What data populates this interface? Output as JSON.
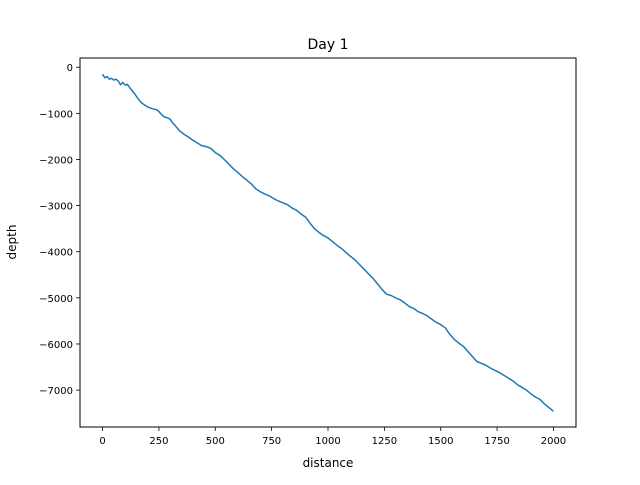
{
  "chart_data": {
    "type": "line",
    "title": "Day 1",
    "xlabel": "distance",
    "ylabel": "depth",
    "xlim": [
      -100,
      2100
    ],
    "ylim": [
      -7800,
      200
    ],
    "xticks": [
      0,
      250,
      500,
      750,
      1000,
      1250,
      1500,
      1750,
      2000
    ],
    "xtick_labels": [
      "0",
      "250",
      "500",
      "750",
      "1000",
      "1250",
      "1500",
      "1750",
      "2000"
    ],
    "yticks": [
      0,
      -1000,
      -2000,
      -3000,
      -4000,
      -5000,
      -6000,
      -7000
    ],
    "ytick_labels": [
      "0",
      "−1000",
      "−2000",
      "−3000",
      "−4000",
      "−5000",
      "−6000",
      "−7000"
    ],
    "grid": false,
    "legend": "none",
    "series": [
      {
        "color": "#1f77b4",
        "x": [
          0,
          10,
          20,
          30,
          40,
          50,
          60,
          70,
          80,
          90,
          100,
          110,
          125,
          140,
          150,
          160,
          175,
          190,
          200,
          220,
          240,
          250,
          260,
          275,
          290,
          300,
          310,
          325,
          340,
          360,
          380,
          400,
          420,
          440,
          460,
          480,
          500,
          520,
          540,
          560,
          580,
          600,
          620,
          640,
          660,
          680,
          700,
          720,
          740,
          760,
          780,
          800,
          820,
          840,
          860,
          880,
          900,
          920,
          940,
          960,
          980,
          1000,
          1020,
          1040,
          1060,
          1080,
          1100,
          1120,
          1140,
          1160,
          1180,
          1200,
          1220,
          1240,
          1260,
          1280,
          1300,
          1320,
          1340,
          1360,
          1380,
          1400,
          1420,
          1440,
          1460,
          1480,
          1500,
          1520,
          1540,
          1560,
          1580,
          1600,
          1620,
          1640,
          1660,
          1680,
          1700,
          1720,
          1740,
          1760,
          1780,
          1800,
          1820,
          1840,
          1860,
          1880,
          1900,
          1920,
          1940,
          1960,
          1980,
          2000
        ],
        "y": [
          -150,
          -230,
          -200,
          -260,
          -240,
          -280,
          -260,
          -300,
          -380,
          -330,
          -390,
          -370,
          -470,
          -560,
          -630,
          -700,
          -780,
          -830,
          -860,
          -900,
          -920,
          -960,
          -1020,
          -1080,
          -1100,
          -1130,
          -1200,
          -1280,
          -1370,
          -1450,
          -1510,
          -1580,
          -1640,
          -1700,
          -1720,
          -1760,
          -1850,
          -1910,
          -2000,
          -2100,
          -2200,
          -2280,
          -2370,
          -2450,
          -2530,
          -2640,
          -2700,
          -2750,
          -2790,
          -2850,
          -2900,
          -2940,
          -2980,
          -3050,
          -3100,
          -3180,
          -3250,
          -3380,
          -3500,
          -3580,
          -3650,
          -3700,
          -3780,
          -3860,
          -3930,
          -4020,
          -4100,
          -4180,
          -4280,
          -4380,
          -4480,
          -4580,
          -4700,
          -4820,
          -4920,
          -4950,
          -5000,
          -5040,
          -5110,
          -5190,
          -5230,
          -5300,
          -5340,
          -5390,
          -5460,
          -5530,
          -5580,
          -5650,
          -5790,
          -5900,
          -5980,
          -6050,
          -6160,
          -6270,
          -6380,
          -6420,
          -6460,
          -6520,
          -6570,
          -6620,
          -6680,
          -6740,
          -6800,
          -6880,
          -6940,
          -7000,
          -7080,
          -7150,
          -7200,
          -7300,
          -7380,
          -7460
        ]
      }
    ]
  }
}
